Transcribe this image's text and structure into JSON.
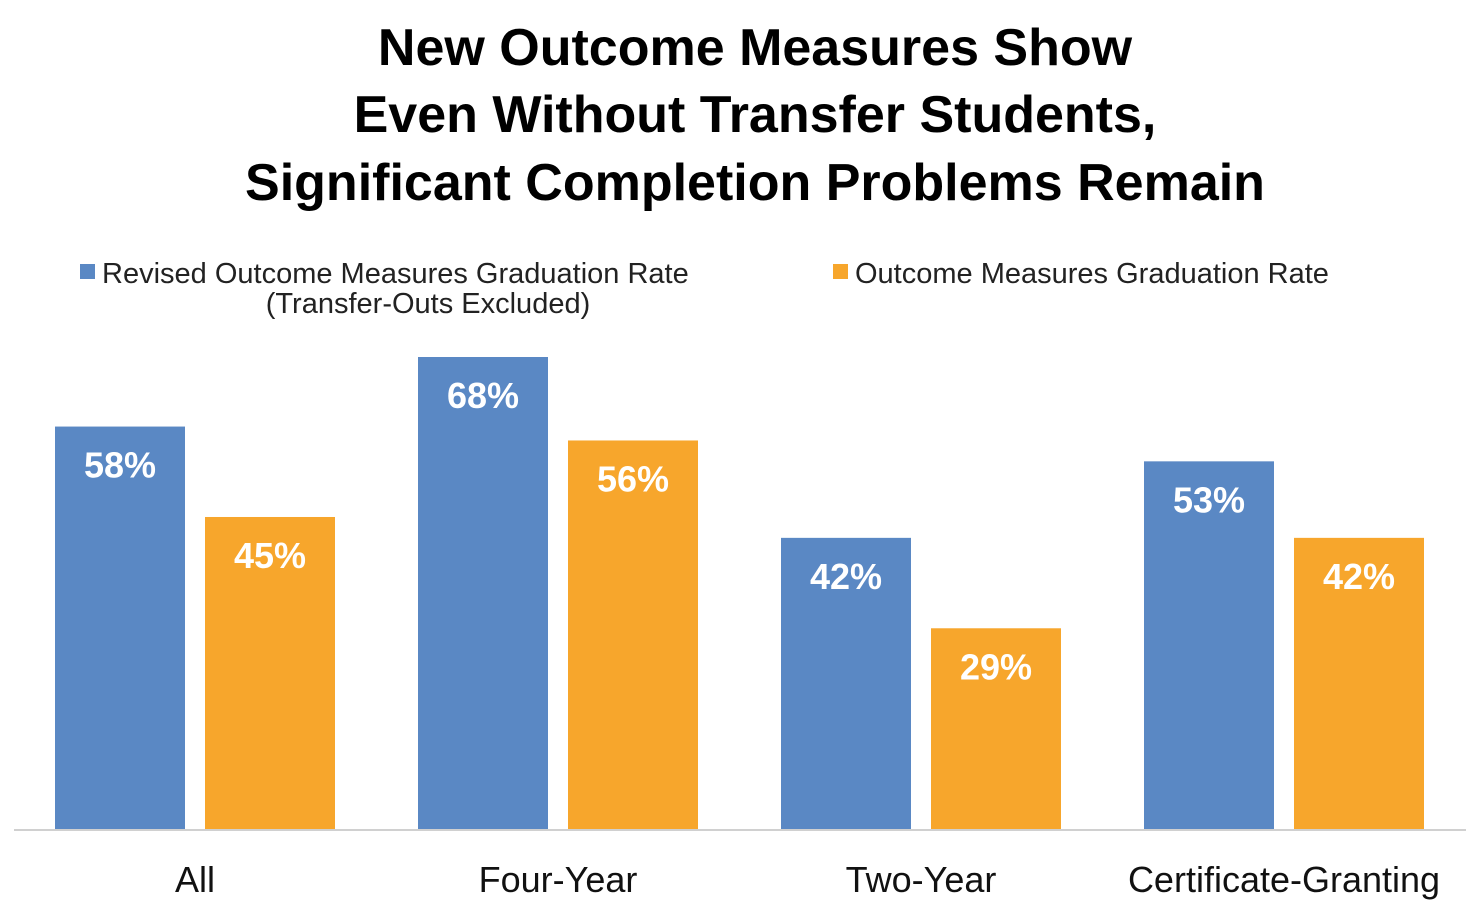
{
  "chart_data": {
    "type": "bar",
    "title_lines": [
      "New Outcome Measures Show",
      "Even Without Transfer Students,",
      "Significant Completion Problems Remain"
    ],
    "categories": [
      "All",
      "Four-Year",
      "Two-Year",
      "Certificate-Granting"
    ],
    "series": [
      {
        "name": "Revised Outcome Measures Graduation Rate",
        "name_line2": "(Transfer-Outs Excluded)",
        "color": "#5A88C4",
        "values": [
          58,
          68,
          42,
          53
        ],
        "labels": [
          "58%",
          "68%",
          "42%",
          "53%"
        ]
      },
      {
        "name": "Outcome Measures Graduation Rate",
        "color": "#F7A62C",
        "values": [
          45,
          56,
          29,
          42
        ],
        "labels": [
          "45%",
          "56%",
          "29%",
          "42%"
        ]
      }
    ],
    "unit": "%",
    "ylim": [
      0,
      100
    ],
    "grid": false,
    "legend": "top"
  }
}
